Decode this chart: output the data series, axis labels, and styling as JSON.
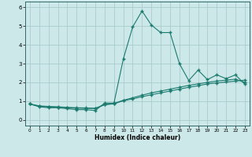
{
  "xlabel": "Humidex (Indice chaleur)",
  "xlim": [
    -0.5,
    23.5
  ],
  "ylim": [
    -0.3,
    6.3
  ],
  "xticks": [
    0,
    1,
    2,
    3,
    4,
    5,
    6,
    7,
    8,
    9,
    10,
    11,
    12,
    13,
    14,
    15,
    16,
    17,
    18,
    19,
    20,
    21,
    22,
    23
  ],
  "yticks": [
    0,
    1,
    2,
    3,
    4,
    5,
    6
  ],
  "bg_color": "#cce8e8",
  "grid_color": "#aacccc",
  "line_color": "#1a7a6e",
  "line1_y": [
    0.85,
    0.7,
    0.65,
    0.65,
    0.6,
    0.55,
    0.55,
    0.5,
    0.9,
    0.9,
    3.25,
    4.95,
    5.8,
    5.05,
    4.65,
    4.65,
    3.0,
    2.1,
    2.65,
    2.15,
    2.4,
    2.2,
    2.4,
    1.9
  ],
  "line2_y": [
    0.85,
    0.75,
    0.72,
    0.7,
    0.67,
    0.65,
    0.64,
    0.62,
    0.82,
    0.88,
    1.05,
    1.18,
    1.32,
    1.44,
    1.54,
    1.64,
    1.74,
    1.84,
    1.92,
    2.0,
    2.07,
    2.12,
    2.17,
    2.0
  ],
  "line3_y": [
    0.85,
    0.73,
    0.69,
    0.68,
    0.65,
    0.63,
    0.62,
    0.61,
    0.81,
    0.86,
    1.02,
    1.12,
    1.24,
    1.34,
    1.44,
    1.54,
    1.64,
    1.74,
    1.82,
    1.92,
    1.97,
    2.02,
    2.07,
    2.12
  ]
}
